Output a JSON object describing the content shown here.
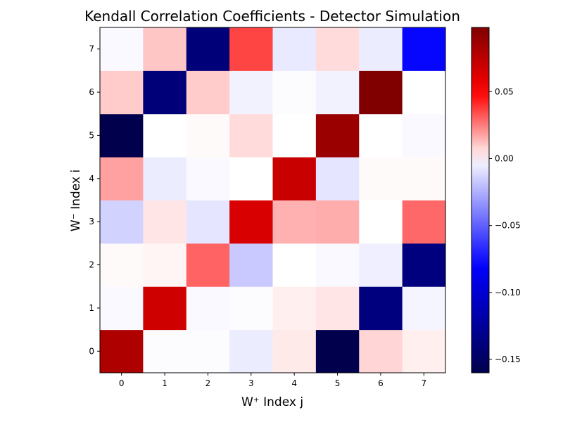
{
  "chart_data": {
    "type": "heatmap",
    "title": "Kendall Correlation Coefficients - Detector Simulation",
    "xlabel": "W⁺  Index j",
    "ylabel": "W⁻  Index i",
    "x_categories": [
      "0",
      "1",
      "2",
      "3",
      "4",
      "5",
      "6",
      "7"
    ],
    "y_categories": [
      "0",
      "1",
      "2",
      "3",
      "4",
      "5",
      "6",
      "7"
    ],
    "values": [
      [
        0.08,
        -0.001,
        -0.001,
        -0.006,
        0.004,
        -0.161,
        0.008,
        0.003
      ],
      [
        -0.002,
        0.068,
        -0.002,
        -0.001,
        0.003,
        0.005,
        -0.138,
        -0.003
      ],
      [
        0.001,
        0.002,
        0.03,
        -0.017,
        0.0,
        -0.002,
        -0.005,
        -0.138
      ],
      [
        -0.014,
        0.005,
        -0.008,
        0.064,
        0.015,
        0.016,
        0.0,
        0.029
      ],
      [
        0.018,
        -0.006,
        -0.002,
        0.0,
        0.07,
        -0.008,
        0.001,
        0.001
      ],
      [
        -0.161,
        0.0,
        0.001,
        0.007,
        0.0,
        0.088,
        0.0,
        -0.002
      ],
      [
        0.01,
        -0.14,
        0.01,
        -0.004,
        -0.001,
        -0.004,
        0.098,
        0.0
      ],
      [
        -0.002,
        0.011,
        -0.14,
        0.036,
        -0.007,
        0.007,
        -0.006,
        -0.078
      ]
    ],
    "colormap": "seismic",
    "vmin": -0.16,
    "vmax": 0.098,
    "colorbar_ticks": [
      "0.05",
      "0.00",
      "−0.05",
      "−0.10",
      "−0.15"
    ],
    "colorbar_tick_values": [
      0.05,
      0.0,
      -0.05,
      -0.1,
      -0.15
    ],
    "grid": false,
    "legend": "colorbar-right"
  }
}
